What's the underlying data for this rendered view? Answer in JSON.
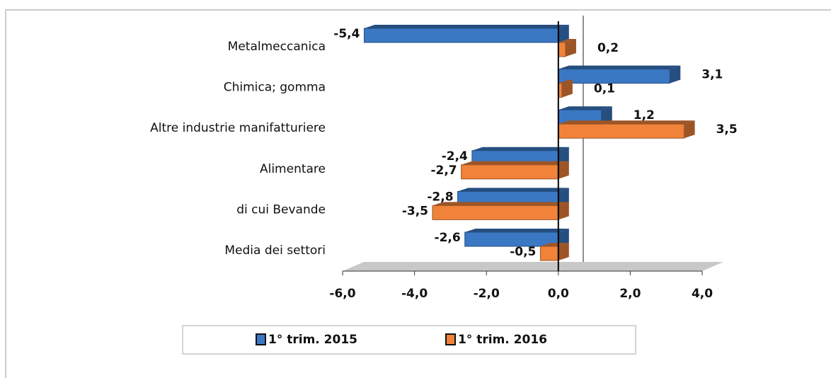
{
  "chart_data": {
    "type": "bar",
    "orientation": "horizontal",
    "categories": [
      "Metalmeccanica",
      "Chimica; gomma",
      "Altre industrie manifatturiere",
      "Alimentare",
      "di cui Bevande",
      "Media dei settori"
    ],
    "series": [
      {
        "name": "1° trim. 2015",
        "color": "#3a78c4",
        "values": [
          -5.4,
          3.1,
          1.2,
          -2.4,
          -2.8,
          -2.6
        ],
        "value_labels": [
          "-5,4",
          "3,1",
          "1,2",
          "-2,4",
          "-2,8",
          "-2,6"
        ]
      },
      {
        "name": "1° trim. 2016",
        "color": "#f0823a",
        "values": [
          0.2,
          0.1,
          3.5,
          -2.7,
          -3.5,
          -0.5
        ],
        "value_labels": [
          "0,2",
          "0,1",
          "3,5",
          "-2,7",
          "-3,5",
          "-0,5"
        ]
      }
    ],
    "xlim": [
      -6,
      4
    ],
    "xticks": [
      {
        "value": -6,
        "label": "-6,0"
      },
      {
        "value": -4,
        "label": "-4,0"
      },
      {
        "value": -2,
        "label": "-2,0"
      },
      {
        "value": 0,
        "label": "0,0"
      },
      {
        "value": 2,
        "label": "2,0"
      },
      {
        "value": 4,
        "label": "4,0"
      }
    ],
    "legend": "bottom"
  }
}
